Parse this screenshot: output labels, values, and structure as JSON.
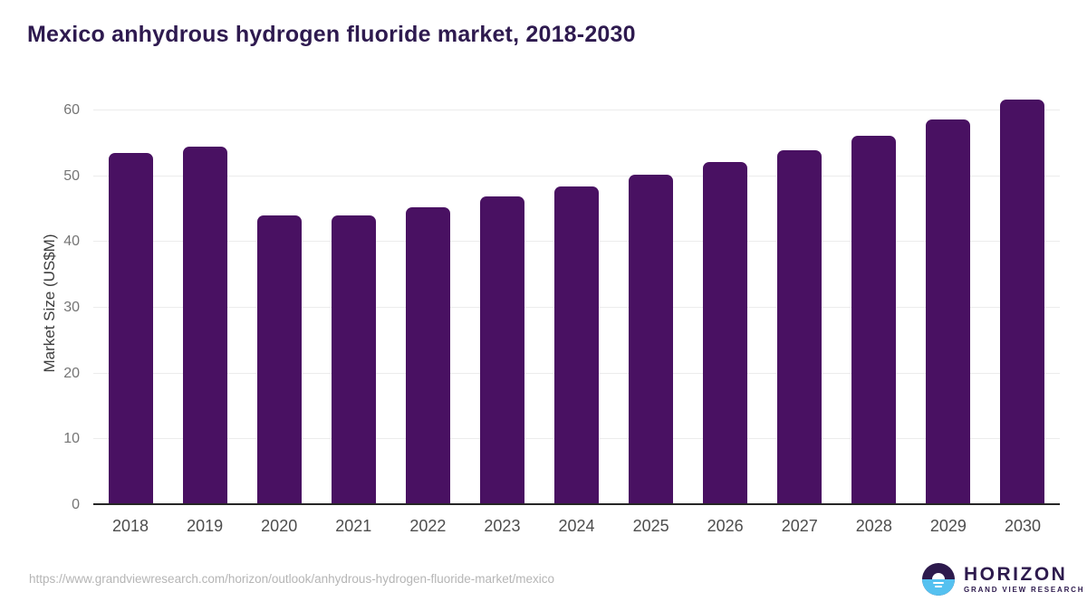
{
  "title": "Mexico anhydrous hydrogen fluoride market, 2018-2030",
  "chart_data": {
    "type": "bar",
    "title": "Mexico anhydrous hydrogen fluoride market, 2018-2030",
    "categories": [
      "2018",
      "2019",
      "2020",
      "2021",
      "2022",
      "2023",
      "2024",
      "2025",
      "2026",
      "2027",
      "2028",
      "2029",
      "2030"
    ],
    "values": [
      53.5,
      54.5,
      44.0,
      44.0,
      45.3,
      46.9,
      48.5,
      50.3,
      52.2,
      53.9,
      56.1,
      58.6,
      61.6
    ],
    "xlabel": "",
    "ylabel": "Market Size (US$M)",
    "ylim": [
      0,
      62.6
    ],
    "yticks": [
      0,
      10,
      20,
      30,
      40,
      50,
      60
    ],
    "grid": true,
    "legend": false,
    "bar_color": "#491162"
  },
  "footer": {
    "source_url": "https://www.grandviewresearch.com/horizon/outlook/anhydrous-hydrogen-fluoride-market/mexico",
    "logo_title": "HORIZON",
    "logo_subtitle": "GRAND VIEW RESEARCH"
  },
  "colors": {
    "title_text": "#2e1a4f",
    "bar": "#491162",
    "axis_line": "#262626",
    "gridline": "#ececec",
    "ytick_label": "#757575",
    "xtick_label": "#4d4d4d",
    "url_text": "#b5b5b5",
    "logo_purple": "#2d1a4d",
    "logo_blue": "#55c1f0"
  }
}
